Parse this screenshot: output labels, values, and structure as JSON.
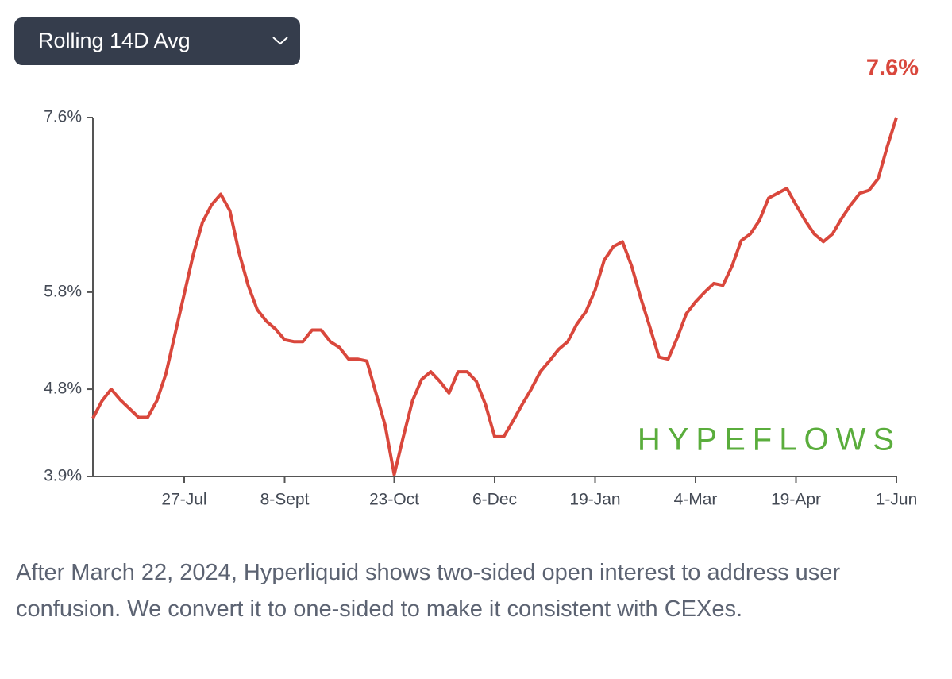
{
  "dropdown": {
    "label": "Rolling 14D Avg"
  },
  "chart_data": {
    "type": "line",
    "annotation": "7.6%",
    "watermark": "HYPEFLOWS",
    "color": "#d9473c",
    "categories": [
      null,
      null,
      null,
      null,
      null,
      null,
      null,
      null,
      null,
      null,
      "27-Jul",
      null,
      null,
      null,
      null,
      null,
      null,
      null,
      null,
      null,
      null,
      "8-Sept",
      null,
      null,
      null,
      null,
      null,
      null,
      null,
      null,
      null,
      null,
      null,
      "23-Oct",
      null,
      null,
      null,
      null,
      null,
      null,
      null,
      null,
      null,
      null,
      "6-Dec",
      null,
      null,
      null,
      null,
      null,
      null,
      null,
      null,
      null,
      null,
      "19-Jan",
      null,
      null,
      null,
      null,
      null,
      null,
      null,
      null,
      null,
      null,
      "4-Mar",
      null,
      null,
      null,
      null,
      null,
      null,
      null,
      null,
      null,
      null,
      "19-Apr",
      null,
      null,
      null,
      null,
      null,
      null,
      null,
      null,
      null,
      null,
      "1-Jun"
    ],
    "values": [
      4.5,
      4.68,
      4.8,
      4.69,
      4.6,
      4.51,
      4.51,
      4.68,
      4.96,
      5.37,
      5.78,
      6.19,
      6.52,
      6.7,
      6.81,
      6.64,
      6.21,
      5.87,
      5.62,
      5.5,
      5.42,
      5.31,
      5.29,
      5.29,
      5.41,
      5.41,
      5.29,
      5.23,
      5.11,
      5.11,
      5.09,
      4.76,
      4.43,
      3.92,
      4.31,
      4.68,
      4.9,
      4.98,
      4.88,
      4.76,
      4.98,
      4.98,
      4.88,
      4.64,
      4.31,
      4.31,
      4.47,
      4.64,
      4.8,
      4.98,
      5.09,
      5.21,
      5.29,
      5.47,
      5.6,
      5.82,
      6.13,
      6.27,
      6.32,
      6.07,
      5.74,
      5.44,
      5.13,
      5.11,
      5.33,
      5.58,
      5.7,
      5.8,
      5.89,
      5.87,
      6.07,
      6.33,
      6.4,
      6.54,
      6.77,
      6.82,
      6.87,
      6.7,
      6.54,
      6.4,
      6.32,
      6.4,
      6.56,
      6.7,
      6.82,
      6.85,
      6.97,
      7.3,
      7.6
    ],
    "ylim": [
      3.9,
      7.6
    ],
    "yticks": [
      {
        "value": 3.9,
        "label": "3.9%"
      },
      {
        "value": 4.8,
        "label": "4.8%"
      },
      {
        "value": 5.8,
        "label": "5.8%"
      },
      {
        "value": 7.6,
        "label": "7.6%"
      }
    ],
    "grid": false
  },
  "caption": "After March 22, 2024, Hyperliquid shows two-sided open interest to address user confusion. We convert it to one-sided to make it consistent with CEXes."
}
